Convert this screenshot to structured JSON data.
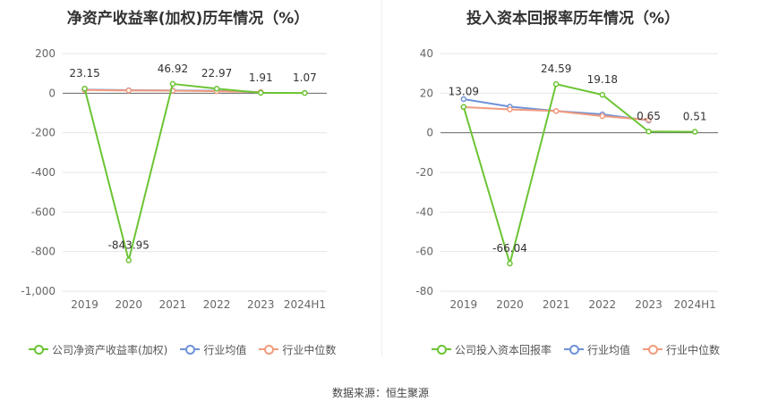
{
  "chart_data": [
    {
      "type": "line",
      "title": "净资产收益率(加权)历年情况（%）",
      "categories": [
        "2019",
        "2020",
        "2021",
        "2022",
        "2023",
        "2024H1"
      ],
      "ylim": [
        -1000,
        200
      ],
      "yticks": [
        200,
        0,
        -200,
        -400,
        -600,
        -800,
        -1000
      ],
      "ytick_labels": [
        "200",
        "0",
        "-200",
        "-400",
        "-600",
        "-800",
        "-1,000"
      ],
      "series": [
        {
          "name": "公司净资产收益率(加权)",
          "color": "#6cc434",
          "values": [
            23.15,
            -843.95,
            46.92,
            22.97,
            1.91,
            1.07
          ],
          "data_labels": [
            "23.15",
            "-843.95",
            "46.92",
            "22.97",
            "1.91",
            "1.07"
          ]
        },
        {
          "name": "行业均值",
          "color": "#6f92d8",
          "values": [
            18,
            15,
            14,
            12,
            5,
            null
          ]
        },
        {
          "name": "行业中位数",
          "color": "#f29b7d",
          "values": [
            16,
            14,
            13,
            10,
            6,
            null
          ]
        }
      ],
      "grid": true,
      "legend": "bottom"
    },
    {
      "type": "line",
      "title": "投入资本回报率历年情况（%）",
      "categories": [
        "2019",
        "2020",
        "2021",
        "2022",
        "2023",
        "2024H1"
      ],
      "ylim": [
        -80,
        40
      ],
      "yticks": [
        40,
        20,
        0,
        -20,
        -40,
        -60,
        -80
      ],
      "ytick_labels": [
        "40",
        "20",
        "0",
        "-20",
        "-40",
        "-60",
        "-80"
      ],
      "series": [
        {
          "name": "公司投入资本回报率",
          "color": "#6cc434",
          "values": [
            13.09,
            -66.04,
            24.59,
            19.18,
            0.65,
            0.51
          ],
          "data_labels": [
            "13.09",
            "-66.04",
            "24.59",
            "19.18",
            "0.65",
            "0.51"
          ]
        },
        {
          "name": "行业均值",
          "color": "#6f92d8",
          "values": [
            17,
            13.2,
            11,
            9.3,
            6.2,
            null
          ]
        },
        {
          "name": "行业中位数",
          "color": "#f29b7d",
          "values": [
            13,
            11.8,
            11,
            8.4,
            6.5,
            null
          ]
        }
      ],
      "grid": true,
      "legend": "bottom"
    }
  ],
  "source": "数据来源：恒生聚源"
}
